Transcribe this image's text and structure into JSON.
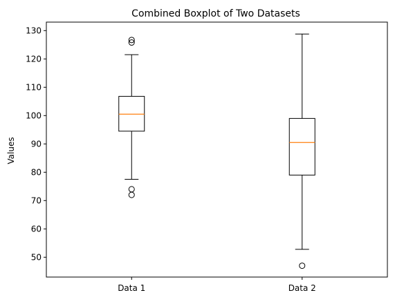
{
  "chart_data": {
    "type": "box",
    "title": "Combined Boxplot of Two Datasets",
    "xlabel": "",
    "ylabel": "Values",
    "ylim": [
      43,
      133
    ],
    "yticks": [
      50,
      60,
      70,
      80,
      90,
      100,
      110,
      120,
      130
    ],
    "grid": false,
    "categories": [
      "Data 1",
      "Data 2"
    ],
    "series": [
      {
        "category": "Data 1",
        "whisker_low": 77.5,
        "q1": 94.5,
        "median": 100.5,
        "q3": 106.8,
        "whisker_high": 121.5,
        "outliers": [
          72.0,
          74.0,
          125.8,
          126.7
        ]
      },
      {
        "category": "Data 2",
        "whisker_low": 52.8,
        "q1": 79.0,
        "median": 90.5,
        "q3": 99.0,
        "whisker_high": 128.8,
        "outliers": [
          47.0
        ]
      }
    ],
    "colors": {
      "box": "#000000",
      "median": "#ff7f0e",
      "axes": "#000000"
    }
  }
}
